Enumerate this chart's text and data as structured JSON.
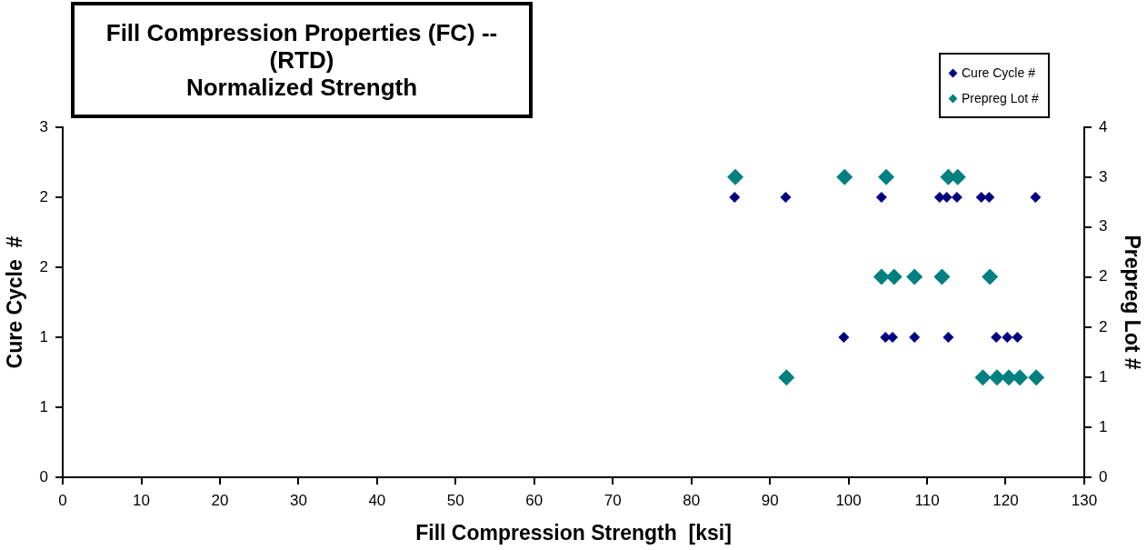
{
  "chart_data": {
    "type": "scatter",
    "title": "Fill Compression Properties (FC) -- (RTD)\nNormalized Strength",
    "xlabel": "Fill Compression Strength  [ksi]",
    "ylabel": "Cure Cycle  #",
    "y2label": "Prepreg Lot #",
    "xlim": [
      0,
      130
    ],
    "xticks": [
      0,
      10,
      20,
      30,
      40,
      50,
      60,
      70,
      80,
      90,
      100,
      110,
      120,
      130
    ],
    "ylim": [
      0,
      3
    ],
    "yticks": [
      0,
      {
        "value": 0.6,
        "label": "1"
      },
      {
        "value": 1.2,
        "label": "1"
      },
      {
        "value": 1.8,
        "label": "2"
      },
      {
        "value": 2.4,
        "label": "2"
      },
      3
    ],
    "y2lim": [
      0,
      4
    ],
    "y2ticks": [
      0,
      {
        "value": 0.57,
        "label": "1"
      },
      {
        "value": 1.14,
        "label": "1"
      },
      {
        "value": 1.71,
        "label": "2"
      },
      {
        "value": 2.29,
        "label": "2"
      },
      {
        "value": 2.86,
        "label": "3"
      },
      {
        "value": 3.43,
        "label": "3"
      },
      4
    ],
    "grid": false,
    "legend": "top right",
    "marker": "diamond",
    "series": [
      {
        "name": "Cure Cycle #",
        "color": "#000080",
        "x": [
          85.5,
          92.0,
          104.2,
          111.6,
          112.5,
          113.8,
          116.9,
          117.9,
          123.8,
          99.4,
          104.7,
          105.6,
          108.4,
          112.7,
          118.8,
          120.2,
          121.5
        ],
        "values": [
          2.4,
          2.4,
          2.4,
          2.4,
          2.4,
          2.4,
          2.4,
          2.4,
          2.4,
          1.2,
          1.2,
          1.2,
          1.2,
          1.2,
          1.2,
          1.2,
          1.2
        ]
      },
      {
        "name": "Prepreg Lot #",
        "color": "#008080",
        "axis": "y2",
        "x": [
          85.6,
          99.5,
          104.8,
          112.7,
          113.9,
          104.2,
          105.8,
          108.4,
          111.9,
          118.0,
          92.1,
          117.1,
          118.9,
          120.4,
          121.8,
          123.9
        ],
        "values": [
          3.43,
          3.43,
          3.43,
          3.43,
          3.43,
          2.29,
          2.29,
          2.29,
          2.29,
          2.29,
          1.14,
          1.14,
          1.14,
          1.14,
          1.14,
          1.14
        ]
      }
    ]
  }
}
